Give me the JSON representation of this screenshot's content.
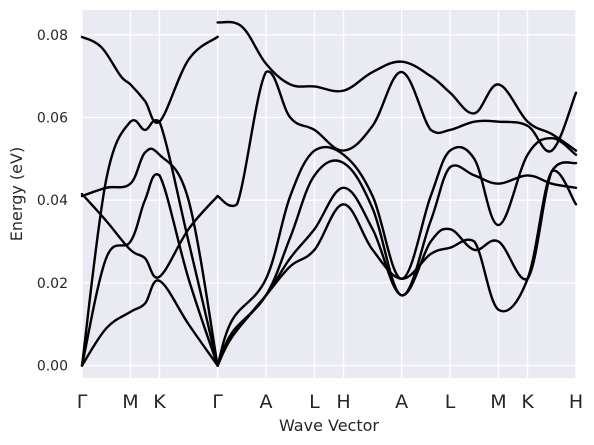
{
  "chart_data": {
    "type": "line",
    "xlabel": "Wave Vector",
    "ylabel": "Energy (eV)",
    "ylim": [
      -0.003,
      0.086
    ],
    "grid": true,
    "y_ticks": [
      0.0,
      0.02,
      0.04,
      0.06,
      0.08
    ],
    "y_tick_labels": [
      "0.00",
      "0.02",
      "0.04",
      "0.06",
      "0.08"
    ],
    "x_ticks": [
      0,
      1,
      1.6,
      2.8,
      3.8,
      4.8,
      5.4,
      6.6,
      7.6,
      8.6,
      9.2,
      10.2
    ],
    "x_tick_labels": [
      "Γ",
      "M",
      "K",
      "Γ",
      "A",
      "L",
      "H",
      "A",
      "L",
      "M",
      "K",
      "H"
    ],
    "xlim": [
      0,
      10.2
    ],
    "line_color": "#000000",
    "background_color": "#eaeaf2",
    "segments": [
      {
        "path": "Γ-M-K-Γ",
        "series": [
          {
            "x": [
              0,
              0.4,
              0.8,
              1.0,
              1.3,
              1.6,
              2.2,
              2.8
            ],
            "y": [
              0.0795,
              0.077,
              0.07,
              0.068,
              0.064,
              0.059,
              0.074,
              0.0795
            ]
          },
          {
            "x": [
              0,
              0.5,
              1.0,
              1.3,
              1.6,
              2.2,
              2.8
            ],
            "y": [
              0.0,
              0.045,
              0.059,
              0.057,
              0.059,
              0.03,
              0.0
            ]
          },
          {
            "x": [
              0,
              0.5,
              1.0,
              1.3,
              1.6,
              2.2,
              2.8
            ],
            "y": [
              0.041,
              0.043,
              0.044,
              0.0515,
              0.051,
              0.04,
              0.0
            ]
          },
          {
            "x": [
              0,
              0.5,
              1.0,
              1.3,
              1.6,
              2.2,
              2.8
            ],
            "y": [
              0.0415,
              0.035,
              0.028,
              0.026,
              0.0215,
              0.033,
              0.041
            ]
          },
          {
            "x": [
              0,
              0.5,
              1.0,
              1.3,
              1.6,
              2.2,
              2.8
            ],
            "y": [
              0.0,
              0.026,
              0.03,
              0.04,
              0.046,
              0.021,
              0.0
            ]
          },
          {
            "x": [
              0,
              0.5,
              1.0,
              1.3,
              1.6,
              2.2,
              2.8
            ],
            "y": [
              0.0,
              0.009,
              0.013,
              0.015,
              0.0205,
              0.01,
              0.0
            ]
          }
        ]
      },
      {
        "path": "Γ-A-L-H-A-L-M-K-H",
        "series": [
          {
            "x": [
              2.8,
              3.3,
              3.8,
              4.3,
              4.8,
              5.4,
              6.0,
              6.6,
              7.2,
              7.6,
              8.1,
              8.6,
              9.2,
              9.7,
              10.2
            ],
            "y": [
              0.083,
              0.082,
              0.073,
              0.068,
              0.0675,
              0.0665,
              0.071,
              0.0735,
              0.07,
              0.066,
              0.061,
              0.068,
              0.059,
              0.056,
              0.052
            ]
          },
          {
            "x": [
              2.8,
              3.2,
              3.8,
              4.3,
              4.8,
              5.4,
              6.0,
              6.6,
              7.2,
              7.6,
              8.1,
              8.6,
              9.2,
              9.7,
              10.2
            ],
            "y": [
              0.041,
              0.039,
              0.071,
              0.06,
              0.057,
              0.052,
              0.058,
              0.071,
              0.057,
              0.057,
              0.059,
              0.059,
              0.058,
              0.052,
              0.066
            ]
          },
          {
            "x": [
              2.8,
              3.1,
              3.8,
              4.3,
              4.8,
              5.4,
              6.0,
              6.6,
              7.2,
              7.6,
              8.1,
              8.6,
              9.2,
              9.7,
              10.2
            ],
            "y": [
              0.0,
              0.011,
              0.021,
              0.041,
              0.052,
              0.051,
              0.041,
              0.021,
              0.041,
              0.052,
              0.05,
              0.034,
              0.051,
              0.055,
              0.051
            ]
          },
          {
            "x": [
              2.8,
              3.1,
              3.8,
              4.3,
              4.8,
              5.4,
              6.0,
              6.6,
              7.2,
              7.6,
              8.1,
              8.6,
              9.2,
              9.7,
              10.2
            ],
            "y": [
              0.0,
              0.008,
              0.017,
              0.031,
              0.046,
              0.049,
              0.038,
              0.017,
              0.035,
              0.048,
              0.046,
              0.044,
              0.046,
              0.044,
              0.043
            ]
          },
          {
            "x": [
              2.8,
              3.1,
              3.8,
              4.3,
              4.8,
              5.4,
              6.0,
              6.6,
              7.2,
              7.6,
              8.1,
              8.6,
              9.2,
              9.7,
              10.2
            ],
            "y": [
              0.0,
              0.007,
              0.017,
              0.026,
              0.033,
              0.043,
              0.033,
              0.017,
              0.03,
              0.033,
              0.028,
              0.03,
              0.021,
              0.047,
              0.049
            ]
          },
          {
            "x": [
              2.8,
              3.1,
              3.8,
              4.3,
              4.8,
              5.4,
              6.0,
              6.6,
              7.2,
              7.6,
              8.1,
              8.6,
              9.2,
              9.7,
              10.2
            ],
            "y": [
              0.0,
              0.007,
              0.017,
              0.024,
              0.028,
              0.039,
              0.028,
              0.021,
              0.027,
              0.0285,
              0.03,
              0.0135,
              0.021,
              0.047,
              0.039
            ]
          }
        ]
      }
    ]
  }
}
